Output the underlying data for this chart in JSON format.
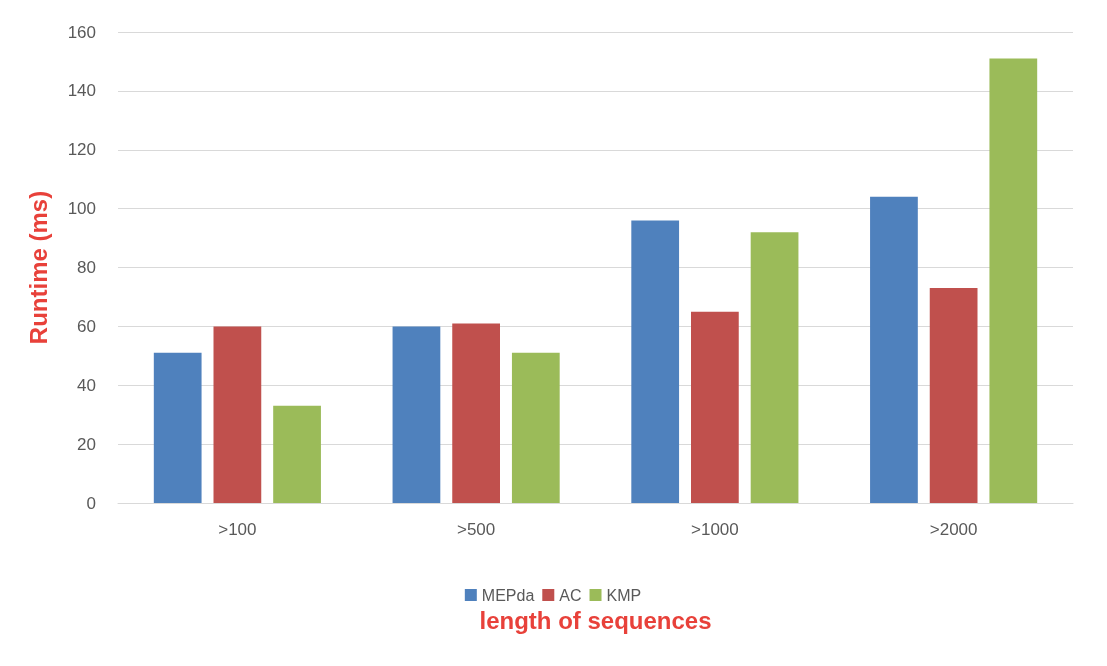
{
  "chart_data": {
    "type": "bar",
    "xlabel": "length of sequences",
    "ylabel": "Runtime (ms)",
    "categories": [
      ">100",
      ">500",
      ">1000",
      ">2000"
    ],
    "series": [
      {
        "name": "MEPda",
        "color": "#4f81bd",
        "values": [
          51,
          60,
          96,
          104
        ]
      },
      {
        "name": "AC",
        "color": "#c0504d",
        "values": [
          60,
          61,
          65,
          73
        ]
      },
      {
        "name": "KMP",
        "color": "#9bbb59",
        "values": [
          33,
          51,
          92,
          151
        ]
      }
    ],
    "ylim": [
      0,
      160
    ],
    "yticks": [
      0,
      20,
      40,
      60,
      80,
      100,
      120,
      140,
      160
    ],
    "grid": "y",
    "legend": "bottom"
  }
}
